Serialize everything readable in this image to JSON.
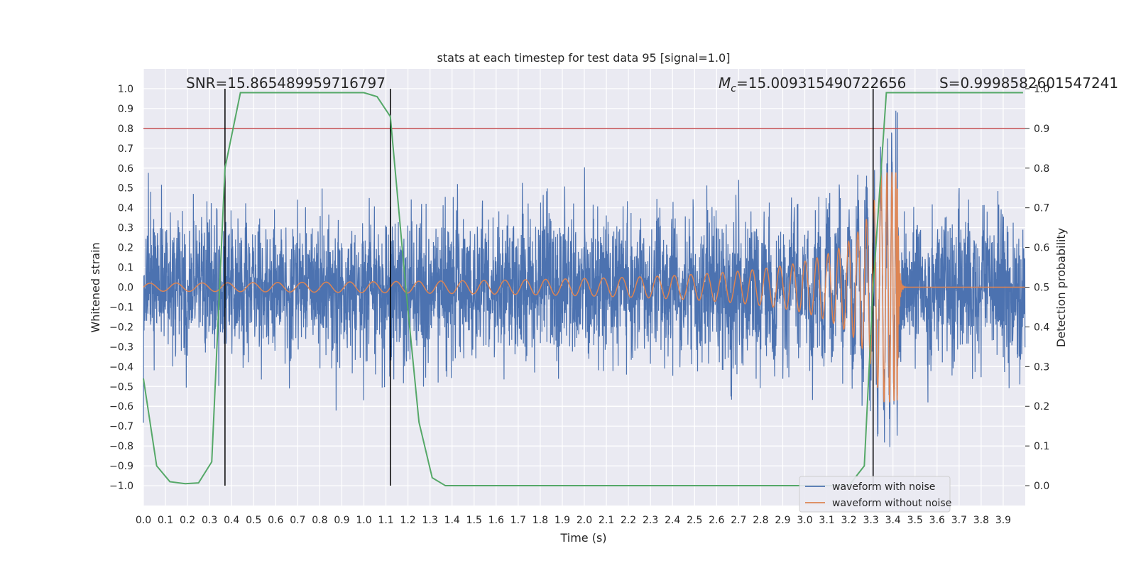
{
  "chart_data": {
    "type": "line",
    "title": "stats at each timestep for test data 95 [signal=1.0]",
    "xlabel": "Time (s)",
    "ylabel_left": "Whitened strain",
    "ylabel_right": "Detection probability",
    "xlim": [
      0.0,
      4.0
    ],
    "ylim_left": [
      -1.1,
      1.1
    ],
    "ylim_right": [
      -0.05,
      1.05
    ],
    "x_ticks": [
      "0.0",
      "0.1",
      "0.2",
      "0.3",
      "0.4",
      "0.5",
      "0.6",
      "0.7",
      "0.8",
      "0.9",
      "1.0",
      "1.1",
      "1.2",
      "1.3",
      "1.4",
      "1.5",
      "1.6",
      "1.7",
      "1.8",
      "1.9",
      "2.0",
      "2.1",
      "2.2",
      "2.3",
      "2.4",
      "2.5",
      "2.6",
      "2.7",
      "2.8",
      "2.9",
      "3.0",
      "3.1",
      "3.2",
      "3.3",
      "3.4",
      "3.5",
      "3.6",
      "3.7",
      "3.8",
      "3.9"
    ],
    "y_ticks_left": [
      "1.0",
      "0.9",
      "0.8",
      "0.7",
      "0.6",
      "0.5",
      "0.4",
      "0.3",
      "0.2",
      "0.1",
      "0.0",
      "−0.1",
      "−0.2",
      "−0.3",
      "−0.4",
      "−0.5",
      "−0.6",
      "−0.7",
      "−0.8",
      "−0.9",
      "−1.0"
    ],
    "y_ticks_right": [
      "1.0",
      "0.9",
      "0.8",
      "0.7",
      "0.6",
      "0.5",
      "0.4",
      "0.3",
      "0.2",
      "0.1",
      "0.0"
    ],
    "grid": true,
    "legend_position": "bottom-right",
    "series": [
      {
        "name": "waveform with noise",
        "color": "#4c72b0",
        "axis": "left",
        "noise_amplitude": 0.3,
        "peak_range": [
          -1.0,
          0.93
        ]
      },
      {
        "name": "waveform without noise",
        "color": "#dd8452",
        "axis": "left",
        "chirp_start_amplitude": 0.02,
        "chirp_peak_amplitude": 0.58,
        "merger_time": 3.42
      },
      {
        "color": "#55a868",
        "axis": "right",
        "x": [
          0.0,
          0.06,
          0.12,
          0.19,
          0.25,
          0.31,
          0.37,
          0.44,
          0.5,
          0.56,
          0.62,
          0.69,
          0.75,
          0.81,
          0.87,
          0.94,
          1.0,
          1.06,
          1.12,
          1.19,
          1.25,
          1.31,
          1.37,
          1.44,
          1.5,
          2.0,
          2.5,
          3.0,
          3.2,
          3.27,
          3.31,
          3.37,
          3.44,
          3.5,
          3.6,
          3.7,
          3.8,
          3.9,
          3.99
        ],
        "values": [
          0.27,
          0.05,
          0.01,
          0.005,
          0.007,
          0.06,
          0.8,
          0.99,
          0.99,
          0.99,
          0.99,
          0.99,
          0.99,
          0.99,
          0.99,
          0.99,
          0.99,
          0.98,
          0.93,
          0.5,
          0.16,
          0.02,
          0.0,
          0.0,
          0.0,
          0.0,
          0.0,
          0.0,
          0.0,
          0.05,
          0.5,
          0.99,
          0.99,
          0.99,
          0.99,
          0.99,
          0.99,
          0.99,
          0.99
        ]
      }
    ],
    "threshold_line": {
      "value": 0.9,
      "axis": "right",
      "color": "#c44e52"
    },
    "vertical_lines": [
      0.37,
      1.12,
      3.31
    ],
    "annotations": {
      "snr": "SNR=15.865489959716797",
      "mc_symbol": "M",
      "mc_sub": "c",
      "mc_value": "=15.009315490722656",
      "s": "S=0.9998582601547241"
    }
  }
}
